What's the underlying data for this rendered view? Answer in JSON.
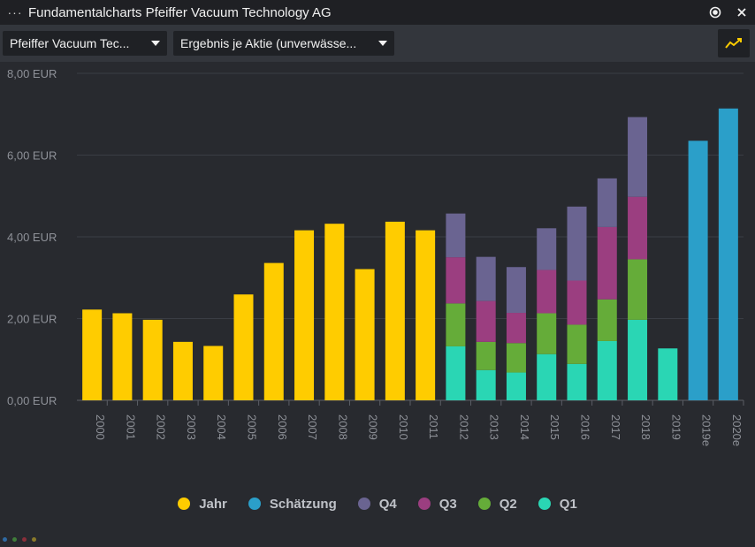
{
  "window": {
    "title": "Fundamentalcharts Pfeiffer Vacuum Technology AG",
    "menu_icon": "ellipsis-icon",
    "target_icon": "record-icon",
    "close_icon": "close-icon"
  },
  "toolbar": {
    "company_select": "Pfeiffer Vacuum Tec...",
    "metric_select": "Ergebnis je Aktie (unverwässe...",
    "chart_type_icon": "line-chart-icon"
  },
  "colors": {
    "Jahr": "#ffcc00",
    "Schätzung": "#2b9fc9",
    "Q4": "#6a6491",
    "Q3": "#9b3e80",
    "Q2": "#65ac39",
    "Q1": "#2ad6b4"
  },
  "chart_data": {
    "type": "bar",
    "stacked": true,
    "categories": [
      "2000",
      "2001",
      "2002",
      "2003",
      "2004",
      "2005",
      "2006",
      "2007",
      "2008",
      "2009",
      "2010",
      "2011",
      "2012",
      "2013",
      "2014",
      "2015",
      "2016",
      "2017",
      "2018",
      "2019",
      "2019e",
      "2020e"
    ],
    "y_ticks": [
      "0,00 EUR",
      "2,00 EUR",
      "4,00 EUR",
      "6,00 EUR",
      "8,00 EUR"
    ],
    "ylim": [
      0,
      8
    ],
    "grid": true,
    "legend_position": "bottom",
    "series": [
      {
        "name": "Jahr",
        "values": [
          2.22,
          2.13,
          1.97,
          1.43,
          1.33,
          2.59,
          3.36,
          4.16,
          4.32,
          3.21,
          4.37,
          4.16,
          null,
          null,
          null,
          null,
          null,
          null,
          null,
          null,
          null,
          null
        ]
      },
      {
        "name": "Schätzung",
        "values": [
          null,
          null,
          null,
          null,
          null,
          null,
          null,
          null,
          null,
          null,
          null,
          null,
          null,
          null,
          null,
          null,
          null,
          null,
          null,
          null,
          6.35,
          7.14
        ]
      },
      {
        "name": "Q1",
        "values": [
          null,
          null,
          null,
          null,
          null,
          null,
          null,
          null,
          null,
          null,
          null,
          null,
          1.32,
          0.74,
          0.68,
          1.13,
          0.89,
          1.45,
          1.97,
          1.27,
          null,
          null
        ]
      },
      {
        "name": "Q2",
        "values": [
          null,
          null,
          null,
          null,
          null,
          null,
          null,
          null,
          null,
          null,
          null,
          null,
          1.05,
          0.69,
          0.72,
          1.0,
          0.96,
          1.02,
          1.48,
          null,
          null,
          null
        ]
      },
      {
        "name": "Q3",
        "values": [
          null,
          null,
          null,
          null,
          null,
          null,
          null,
          null,
          null,
          null,
          null,
          null,
          1.13,
          1.0,
          0.74,
          1.06,
          1.08,
          1.77,
          1.53,
          null,
          null,
          null
        ]
      },
      {
        "name": "Q4",
        "values": [
          null,
          null,
          null,
          null,
          null,
          null,
          null,
          null,
          null,
          null,
          null,
          null,
          1.07,
          1.08,
          1.12,
          1.02,
          1.81,
          1.19,
          1.95,
          null,
          null,
          null
        ]
      }
    ]
  },
  "legend": [
    "Jahr",
    "Schätzung",
    "Q4",
    "Q3",
    "Q2",
    "Q1"
  ]
}
